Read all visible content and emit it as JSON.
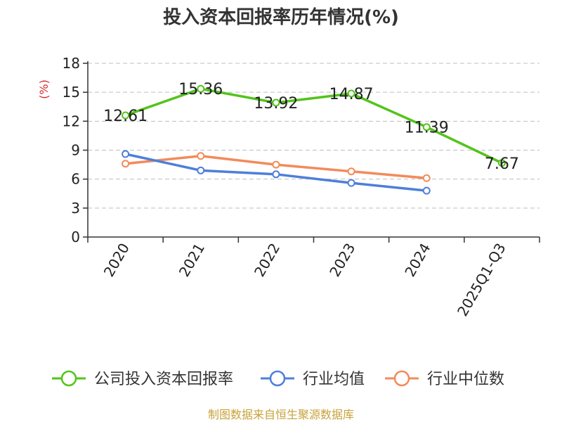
{
  "chart_data": {
    "type": "line",
    "title": "投入资本回报率历年情况(%)",
    "ylabel": "(%)",
    "categories": [
      "2020",
      "2021",
      "2022",
      "2023",
      "2024",
      "2025Q1-Q3"
    ],
    "ylim": [
      0,
      18
    ],
    "yticks": [
      "0",
      "3",
      "6",
      "9",
      "12",
      "15",
      "18"
    ],
    "grid": true,
    "legend_position": "bottom",
    "series": [
      {
        "name": "公司投入资本回报率",
        "color": "#52c41a",
        "values": [
          12.61,
          15.36,
          13.92,
          14.87,
          11.39,
          7.67
        ],
        "labels": [
          "12.61",
          "15.36",
          "13.92",
          "14.87",
          "11.39",
          "7.67"
        ]
      },
      {
        "name": "行业均值",
        "color": "#4e7fd9",
        "values": [
          8.6,
          6.9,
          6.5,
          5.6,
          4.8,
          null
        ]
      },
      {
        "name": "行业中位数",
        "color": "#f28b5b",
        "values": [
          7.6,
          8.4,
          7.5,
          6.8,
          6.1,
          null
        ]
      }
    ]
  },
  "source": "制图数据来自恒生聚源数据库"
}
